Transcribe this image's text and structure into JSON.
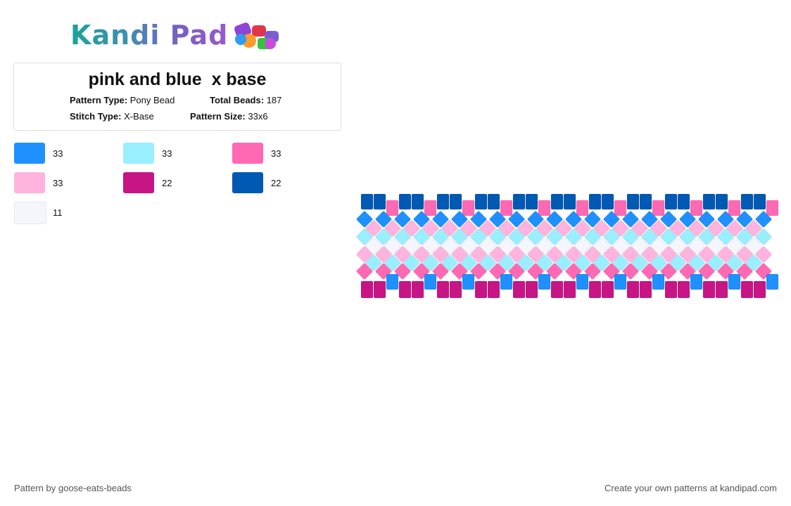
{
  "header": {
    "logo_text": "Kandi Pad"
  },
  "pattern_info": {
    "title": "pink and blue  x base",
    "pattern_type_label": "Pattern Type:",
    "pattern_type_value": "Pony Bead",
    "total_beads_label": "Total Beads:",
    "total_beads_value": "187",
    "stitch_type_label": "Stitch Type:",
    "stitch_type_value": "X-Base",
    "pattern_size_label": "Pattern Size:",
    "pattern_size_value": "33x6"
  },
  "palette": [
    {
      "color": "#1e90ff",
      "count": "33"
    },
    {
      "color": "#99eeff",
      "count": "33"
    },
    {
      "color": "#ff69b4",
      "count": "33"
    },
    {
      "color": "#ffb3de",
      "count": "33"
    },
    {
      "color": "#c71585",
      "count": "22"
    },
    {
      "color": "#0059b3",
      "count": "22"
    },
    {
      "color": "#f5f6fb",
      "count": "11"
    }
  ],
  "footer": {
    "credit": "Pattern by goose-eats-beads",
    "promo": "Create your own patterns at kandipad.com"
  }
}
